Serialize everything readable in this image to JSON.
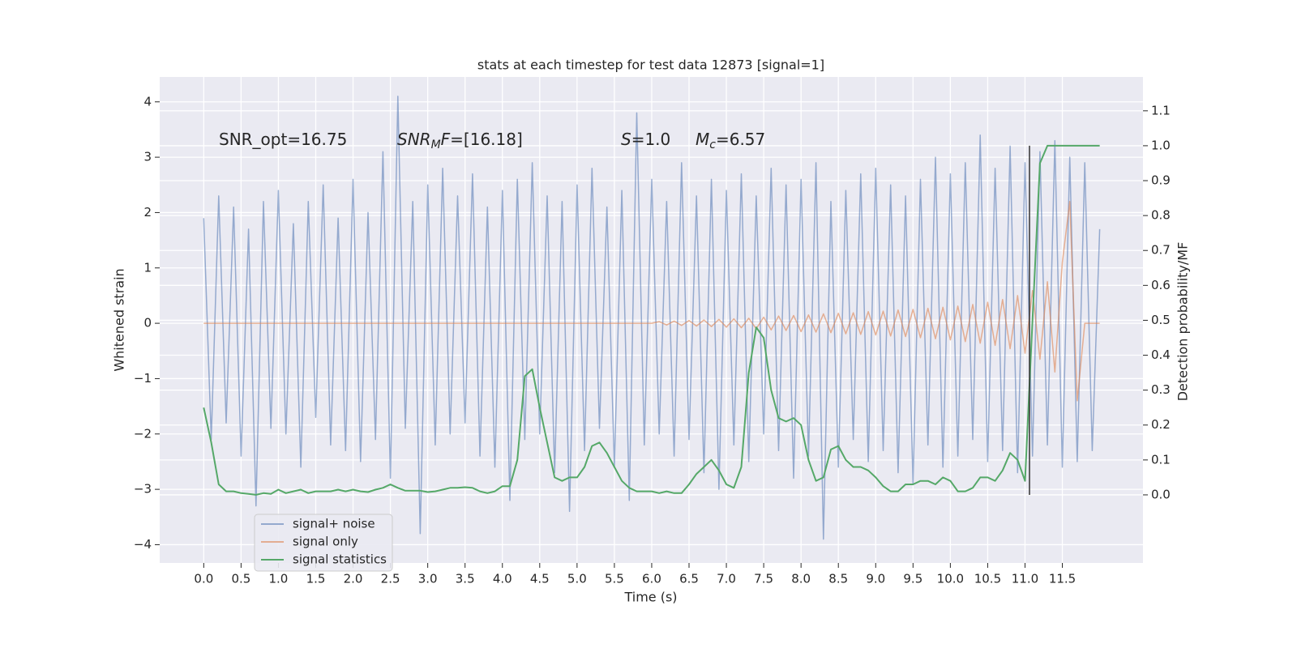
{
  "chart_data": {
    "type": "line",
    "title": "stats at each timestep for test data 12873 [signal=1]",
    "xlabel": "Time (s)",
    "ylabel": "Whitened strain",
    "y2label": "Detection probability/MF",
    "annotations": [
      [
        {
          "t": "SNR_opt=16.75"
        }
      ],
      [
        {
          "t": "SNR",
          "italic": true
        },
        {
          "t": "M",
          "italic": true,
          "sub": true
        },
        {
          "t": "F",
          "italic": true
        },
        {
          "t": "=[16.18]"
        }
      ],
      [
        {
          "t": "S",
          "italic": true
        },
        {
          "t": "=1.0"
        }
      ],
      [
        {
          "t": "M",
          "italic": true
        },
        {
          "t": "c",
          "italic": true,
          "sub": true
        },
        {
          "t": "=6.57"
        }
      ]
    ],
    "x": [
      0,
      0.1,
      0.2,
      0.3,
      0.4,
      0.5,
      0.6,
      0.7,
      0.8,
      0.9,
      1,
      1.1,
      1.2,
      1.3,
      1.4,
      1.5,
      1.6,
      1.7,
      1.8,
      1.9,
      2,
      2.1,
      2.2,
      2.3,
      2.4,
      2.5,
      2.6,
      2.7,
      2.8,
      2.9,
      3,
      3.1,
      3.2,
      3.3,
      3.4,
      3.5,
      3.6,
      3.7,
      3.8,
      3.9,
      4,
      4.1,
      4.2,
      4.3,
      4.4,
      4.5,
      4.6,
      4.7,
      4.8,
      4.9,
      5,
      5.1,
      5.2,
      5.3,
      5.4,
      5.5,
      5.6,
      5.7,
      5.8,
      5.9,
      6,
      6.1,
      6.2,
      6.3,
      6.4,
      6.5,
      6.6,
      6.7,
      6.8,
      6.9,
      7,
      7.1,
      7.2,
      7.3,
      7.4,
      7.5,
      7.6,
      7.7,
      7.8,
      7.9,
      8,
      8.1,
      8.2,
      8.3,
      8.4,
      8.5,
      8.6,
      8.7,
      8.8,
      8.9,
      9,
      9.1,
      9.2,
      9.3,
      9.4,
      9.5,
      9.6,
      9.7,
      9.8,
      9.9,
      10,
      10.1,
      10.2,
      10.3,
      10.4,
      10.5,
      10.6,
      10.7,
      10.8,
      10.9,
      11,
      11.1,
      11.2,
      11.3,
      11.4,
      11.5,
      11.6,
      11.7,
      11.8,
      11.9,
      12
    ],
    "series": [
      {
        "name": "signal+ noise",
        "color": "#4c72b0",
        "alpha": 0.55,
        "axis": "y",
        "values": [
          1.9,
          -2.1,
          2.3,
          -1.8,
          2.1,
          -2.4,
          1.7,
          -3.3,
          2.2,
          -1.9,
          2.4,
          -2.0,
          1.8,
          -2.6,
          2.2,
          -1.7,
          2.5,
          -2.2,
          1.9,
          -2.3,
          2.6,
          -2.5,
          2.0,
          -2.1,
          3.1,
          -2.8,
          4.1,
          -1.9,
          2.2,
          -3.8,
          2.5,
          -2.2,
          2.8,
          -2.0,
          2.3,
          -1.8,
          2.7,
          -2.4,
          2.1,
          -2.6,
          2.4,
          -3.2,
          2.6,
          -2.1,
          2.9,
          -2.0,
          2.3,
          -2.7,
          2.2,
          -3.4,
          2.5,
          -2.3,
          2.8,
          -1.9,
          2.1,
          -2.6,
          2.4,
          -3.2,
          3.8,
          -2.2,
          2.6,
          -2.0,
          2.2,
          -2.4,
          2.9,
          -2.1,
          2.3,
          -2.7,
          2.6,
          -3.0,
          2.4,
          -2.2,
          2.7,
          -2.5,
          2.3,
          -2.0,
          2.8,
          -2.3,
          2.5,
          -2.8,
          2.6,
          -2.4,
          2.9,
          -3.9,
          2.2,
          -2.6,
          2.4,
          -2.1,
          2.7,
          -2.5,
          2.8,
          -2.3,
          2.5,
          -2.7,
          2.3,
          -2.9,
          2.6,
          -2.2,
          3.0,
          -2.6,
          2.7,
          -2.4,
          2.9,
          -2.1,
          3.4,
          -2.5,
          2.8,
          -2.3,
          3.2,
          -2.7,
          2.9,
          -2.4,
          3.1,
          -2.2,
          3.3,
          -2.6,
          3.0,
          -2.5,
          2.9,
          -2.3,
          1.7
        ]
      },
      {
        "name": "signal only",
        "color": "#dd8452",
        "alpha": 0.6,
        "axis": "y",
        "values": [
          0,
          0,
          0,
          0,
          0,
          0,
          0,
          0,
          0,
          0,
          0,
          0,
          0,
          0,
          0,
          0,
          0,
          0,
          0,
          0,
          0,
          0,
          0,
          0,
          0,
          0,
          0,
          0,
          0,
          0,
          0,
          0,
          0,
          0,
          0,
          0,
          0,
          0,
          0,
          0,
          0,
          0,
          0,
          0,
          0,
          0,
          0,
          0,
          0,
          0,
          0,
          0,
          0,
          0,
          0,
          0,
          0,
          0,
          0,
          0,
          0,
          0.03,
          -0.03,
          0.04,
          -0.04,
          0.05,
          -0.05,
          0.06,
          -0.06,
          0.07,
          -0.07,
          0.08,
          -0.08,
          0.09,
          -0.1,
          0.11,
          -0.12,
          0.13,
          -0.13,
          0.14,
          -0.15,
          0.15,
          -0.16,
          0.17,
          -0.17,
          0.18,
          -0.19,
          0.19,
          -0.2,
          0.21,
          -0.21,
          0.22,
          -0.23,
          0.24,
          -0.24,
          0.25,
          -0.26,
          0.27,
          -0.28,
          0.29,
          -0.3,
          0.31,
          -0.33,
          0.34,
          -0.36,
          0.38,
          -0.4,
          0.43,
          -0.46,
          0.5,
          -0.54,
          0.59,
          -0.65,
          0.75,
          -0.88,
          1.1,
          2.2,
          -1.4,
          0,
          0,
          0
        ]
      },
      {
        "name": "signal statistics",
        "color": "#55a868",
        "alpha": 1,
        "axis": "y2",
        "values": [
          0.25,
          0.15,
          0.03,
          0.01,
          0.01,
          0.005,
          0.003,
          0,
          0.005,
          0.003,
          0.015,
          0.005,
          0.01,
          0.015,
          0.005,
          0.01,
          0.01,
          0.01,
          0.015,
          0.01,
          0.015,
          0.01,
          0.008,
          0.015,
          0.02,
          0.03,
          0.02,
          0.012,
          0.012,
          0.012,
          0.008,
          0.01,
          0.015,
          0.02,
          0.02,
          0.022,
          0.02,
          0.01,
          0.005,
          0.01,
          0.025,
          0.025,
          0.1,
          0.34,
          0.36,
          0.25,
          0.15,
          0.05,
          0.04,
          0.05,
          0.05,
          0.08,
          0.14,
          0.15,
          0.12,
          0.08,
          0.04,
          0.02,
          0.01,
          0.01,
          0.01,
          0.005,
          0.01,
          0.005,
          0.005,
          0.03,
          0.06,
          0.08,
          0.1,
          0.07,
          0.03,
          0.02,
          0.08,
          0.35,
          0.48,
          0.45,
          0.3,
          0.22,
          0.21,
          0.22,
          0.2,
          0.1,
          0.04,
          0.05,
          0.13,
          0.14,
          0.1,
          0.08,
          0.08,
          0.07,
          0.05,
          0.025,
          0.01,
          0.01,
          0.03,
          0.03,
          0.04,
          0.04,
          0.03,
          0.05,
          0.04,
          0.01,
          0.01,
          0.02,
          0.05,
          0.05,
          0.04,
          0.07,
          0.12,
          0.1,
          0.04,
          0.5,
          0.95,
          1.0,
          1.0,
          1.0,
          1.0,
          1.0,
          1.0,
          1.0,
          1.0
        ]
      }
    ],
    "vline": {
      "x": 11.06,
      "y2": [
        0,
        1.0
      ],
      "color": "#333333"
    },
    "xlim": [
      -0.59,
      12.58
    ],
    "xticks": [
      {
        "value": 0,
        "label": "0.0"
      },
      0.5,
      {
        "value": 1,
        "label": "1.0"
      },
      1.5,
      {
        "value": 2,
        "label": "2.0"
      },
      2.5,
      {
        "value": 3,
        "label": "3.0"
      },
      3.5,
      {
        "value": 4,
        "label": "4.0"
      },
      4.5,
      {
        "value": 5,
        "label": "5.0"
      },
      5.5,
      {
        "value": 6,
        "label": "6.0"
      },
      6.5,
      {
        "value": 7,
        "label": "7.0"
      },
      7.5,
      {
        "value": 8,
        "label": "8.0"
      },
      8.5,
      {
        "value": 9,
        "label": "9.0"
      },
      9.5,
      {
        "value": 10,
        "label": "10.0"
      },
      10.5,
      {
        "value": 11,
        "label": "11.0"
      },
      11.5
    ],
    "ylim": [
      -4.33,
      4.45
    ],
    "yticks": [
      {
        "value": -4,
        "label": "−4"
      },
      {
        "value": -3,
        "label": "−3"
      },
      {
        "value": -2,
        "label": "−2"
      },
      {
        "value": -1,
        "label": "−1"
      },
      0,
      1,
      2,
      3,
      4
    ],
    "y2lim": [
      -0.195,
      1.197
    ],
    "y2ticks": [
      {
        "value": 0,
        "label": "0.0"
      },
      0.1,
      0.2,
      0.3,
      0.4,
      0.5,
      0.6,
      0.7,
      0.8,
      0.9,
      {
        "value": 1,
        "label": "1.0"
      },
      1.1
    ],
    "grid": true,
    "legend": "lower left"
  }
}
